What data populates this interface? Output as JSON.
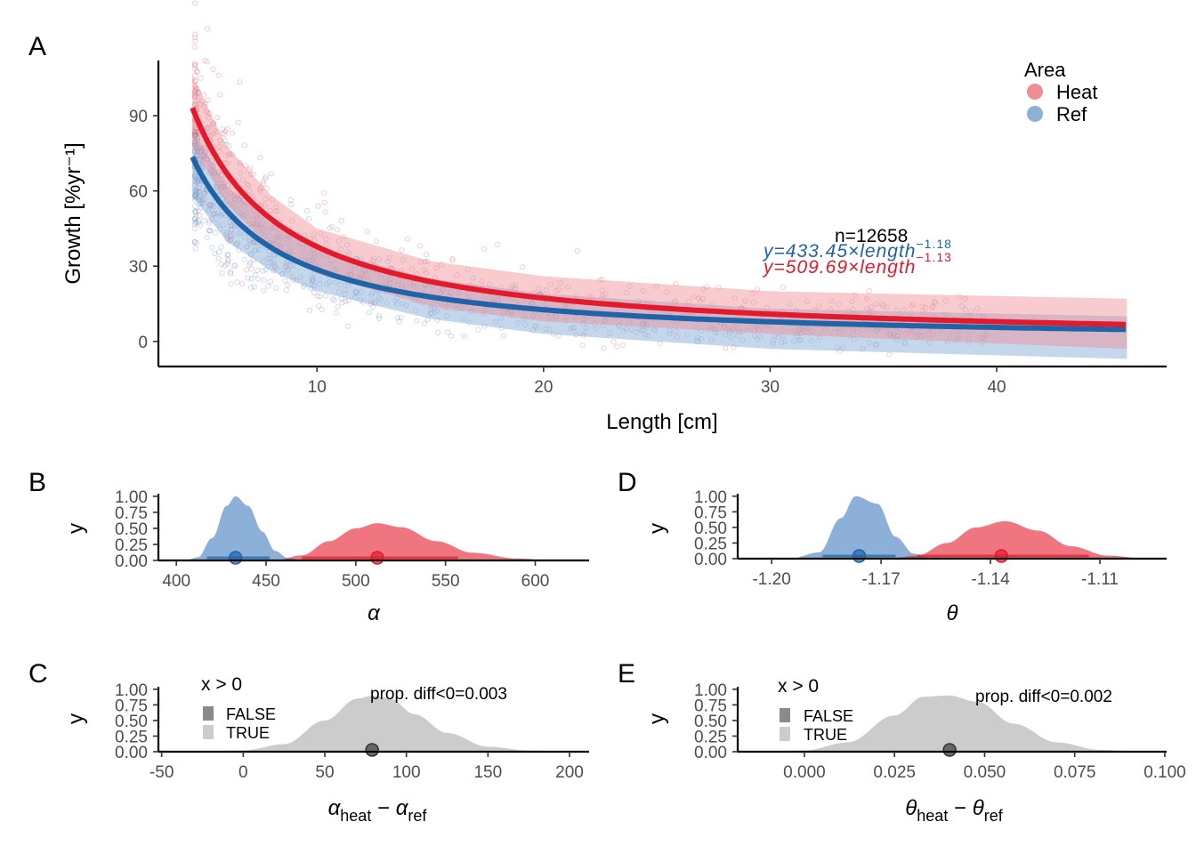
{
  "panel_labels": [
    "A",
    "B",
    "C",
    "D",
    "E"
  ],
  "colors": {
    "heat": "#e41a2c",
    "heat_light": "#f08c94",
    "ref": "#1f64a8",
    "ref_light": "#8cb0d8",
    "gray": "#cccccc",
    "gray_dark": "#8a8a8a"
  },
  "chart_data": [
    {
      "panel": "A",
      "type": "scatter",
      "xlabel": "Length [cm]",
      "ylabel": "Growth [%yr⁻¹]",
      "xlim": [
        3,
        47.5
      ],
      "ylim": [
        -10,
        112
      ],
      "xticks": [
        10,
        20,
        30,
        40
      ],
      "yticks": [
        0,
        30,
        60,
        90
      ],
      "legend": {
        "title": "Area",
        "position": "top-right",
        "entries": [
          "Heat",
          "Ref"
        ]
      },
      "n_label": "n=12658",
      "series": [
        {
          "name": "Heat",
          "alpha": 509.69,
          "theta": -1.13,
          "x_range": [
            4.5,
            45.8
          ],
          "band_upper": [
            [
              4.5,
              106
            ],
            [
              6,
              78
            ],
            [
              8,
              58
            ],
            [
              10,
              45
            ],
            [
              15,
              32
            ],
            [
              20,
              26
            ],
            [
              30,
              20
            ],
            [
              45.8,
              17
            ]
          ],
          "band_lower": [
            [
              4.5,
              78
            ],
            [
              6,
              55
            ],
            [
              8,
              37
            ],
            [
              10,
              27
            ],
            [
              15,
              14
            ],
            [
              20,
              8
            ],
            [
              30,
              3
            ],
            [
              45.8,
              -3
            ]
          ]
        },
        {
          "name": "Ref",
          "alpha": 433.45,
          "theta": -1.18,
          "x_range": [
            4.5,
            45.8
          ],
          "band_upper": [
            [
              4.5,
              84
            ],
            [
              6,
              62
            ],
            [
              8,
              47
            ],
            [
              10,
              37
            ],
            [
              15,
              25
            ],
            [
              20,
              19
            ],
            [
              30,
              13
            ],
            [
              45.8,
              10
            ]
          ],
          "band_lower": [
            [
              4.5,
              58
            ],
            [
              6,
              40
            ],
            [
              8,
              28
            ],
            [
              10,
              20
            ],
            [
              15,
              9
            ],
            [
              20,
              3
            ],
            [
              30,
              -3
            ],
            [
              45.8,
              -7
            ]
          ]
        }
      ],
      "equations": [
        {
          "series": "Ref",
          "text": "y=433.45×length",
          "exponent": "−1.18"
        },
        {
          "series": "Heat",
          "text": "y=509.69×length",
          "exponent": "−1.13"
        }
      ]
    },
    {
      "panel": "B",
      "type": "area",
      "xlabel": "α",
      "ylabel": "y",
      "xlim": [
        390,
        630
      ],
      "ylim": [
        0,
        1.04
      ],
      "xticks": [
        400,
        450,
        500,
        550,
        600
      ],
      "yticks": [
        "0.00",
        "0.25",
        "0.50",
        "0.75",
        "1.00"
      ],
      "series": [
        {
          "name": "Ref",
          "points": [
            [
              405,
              0
            ],
            [
              412,
              0.05
            ],
            [
              420,
              0.35
            ],
            [
              428,
              0.85
            ],
            [
              433,
              1.0
            ],
            [
              440,
              0.85
            ],
            [
              448,
              0.45
            ],
            [
              455,
              0.15
            ],
            [
              462,
              0.04
            ],
            [
              470,
              0
            ]
          ],
          "median": 433,
          "interval": [
            417,
            452
          ]
        },
        {
          "name": "Heat",
          "points": [
            [
              455,
              0
            ],
            [
              470,
              0.08
            ],
            [
              485,
              0.3
            ],
            [
              500,
              0.5
            ],
            [
              512,
              0.58
            ],
            [
              525,
              0.52
            ],
            [
              545,
              0.3
            ],
            [
              565,
              0.12
            ],
            [
              590,
              0.03
            ],
            [
              610,
              0
            ]
          ],
          "median": 512,
          "interval": [
            470,
            557
          ]
        }
      ]
    },
    {
      "panel": "C",
      "type": "area",
      "xlabel": "α_heat − α_ref",
      "ylabel": "y",
      "xlim": [
        -52,
        212
      ],
      "ylim": [
        0,
        1.04
      ],
      "xticks": [
        -50,
        0,
        50,
        100,
        150,
        200
      ],
      "yticks": [
        "0.00",
        "0.25",
        "0.50",
        "0.75",
        "1.00"
      ],
      "legend": {
        "title": "x > 0",
        "entries": [
          "FALSE",
          "TRUE"
        ]
      },
      "annotation": "prop. diff<0=0.003",
      "points": [
        [
          -25,
          0
        ],
        [
          0,
          0.02
        ],
        [
          25,
          0.12
        ],
        [
          50,
          0.5
        ],
        [
          70,
          0.85
        ],
        [
          80,
          0.9
        ],
        [
          90,
          0.85
        ],
        [
          105,
          0.6
        ],
        [
          125,
          0.3
        ],
        [
          150,
          0.08
        ],
        [
          175,
          0.02
        ],
        [
          200,
          0
        ]
      ],
      "median": 79
    },
    {
      "panel": "D",
      "type": "area",
      "xlabel": "θ",
      "ylabel": "y",
      "xlim": [
        -1.2093,
        -1.0917
      ],
      "ylim": [
        0,
        1.04
      ],
      "xticks": [
        -1.2,
        -1.17,
        -1.14,
        -1.11
      ],
      "xticklabels": [
        "-1.20",
        "-1.17",
        "-1.14",
        "-1.11"
      ],
      "yticks": [
        "0.00",
        "0.25",
        "0.50",
        "0.75",
        "1.00"
      ],
      "series": [
        {
          "name": "Ref",
          "points": [
            [
              -1.195,
              0
            ],
            [
              -1.187,
              0.1
            ],
            [
              -1.181,
              0.65
            ],
            [
              -1.177,
              1.0
            ],
            [
              -1.171,
              0.88
            ],
            [
              -1.166,
              0.35
            ],
            [
              -1.161,
              0.08
            ],
            [
              -1.156,
              0
            ]
          ],
          "median": -1.176,
          "interval": [
            -1.186,
            -1.166
          ]
        },
        {
          "name": "Heat",
          "points": [
            [
              -1.168,
              0
            ],
            [
              -1.16,
              0.05
            ],
            [
              -1.152,
              0.25
            ],
            [
              -1.144,
              0.5
            ],
            [
              -1.136,
              0.6
            ],
            [
              -1.127,
              0.45
            ],
            [
              -1.118,
              0.2
            ],
            [
              -1.108,
              0.05
            ],
            [
              -1.097,
              0
            ]
          ],
          "median": -1.137,
          "interval": [
            -1.16,
            -1.113
          ]
        }
      ]
    },
    {
      "panel": "E",
      "type": "area",
      "xlabel": "θ_heat − θ_ref",
      "ylabel": "y",
      "xlim": [
        -0.0185,
        0.1005
      ],
      "ylim": [
        0,
        1.04
      ],
      "xticks": [
        0.0,
        0.025,
        0.05,
        0.075,
        0.1
      ],
      "xticklabels": [
        "0.000",
        "0.025",
        "0.050",
        "0.075",
        "0.100"
      ],
      "yticks": [
        "0.00",
        "0.25",
        "0.50",
        "0.75",
        "1.00"
      ],
      "legend": {
        "title": "x > 0",
        "entries": [
          "FALSE",
          "TRUE"
        ]
      },
      "annotation": "prop. diff<0=0.002",
      "points": [
        [
          -0.012,
          0
        ],
        [
          0.0,
          0.02
        ],
        [
          0.012,
          0.15
        ],
        [
          0.025,
          0.58
        ],
        [
          0.033,
          0.88
        ],
        [
          0.04,
          0.9
        ],
        [
          0.048,
          0.8
        ],
        [
          0.058,
          0.45
        ],
        [
          0.07,
          0.15
        ],
        [
          0.082,
          0.03
        ],
        [
          0.093,
          0
        ]
      ],
      "median": 0.0403
    }
  ]
}
